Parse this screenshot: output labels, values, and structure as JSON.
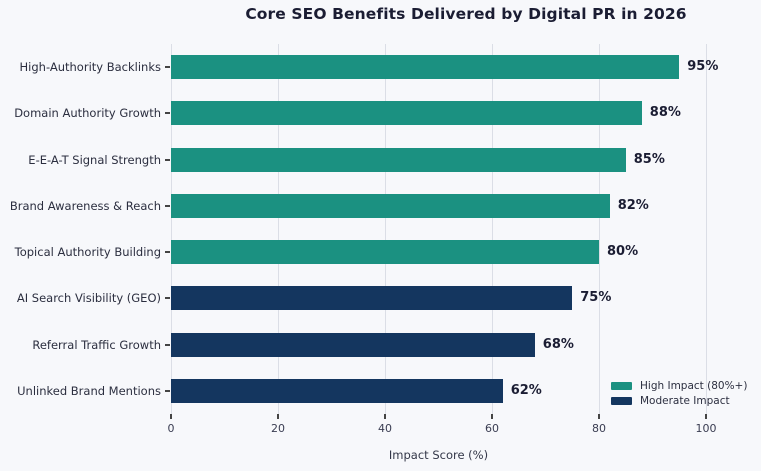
{
  "chart_data": {
    "type": "bar",
    "orientation": "horizontal",
    "title": "Core SEO Benefits Delivered by Digital PR in 2026",
    "xlabel": "Impact Score (%)",
    "categories": [
      "High-Authority Backlinks",
      "Domain Authority Growth",
      "E-E-A-T Signal Strength",
      "Brand Awareness & Reach",
      "Topical Authority Building",
      "AI Search Visibility (GEO)",
      "Referral Traffic Growth",
      "Unlinked Brand Mentions"
    ],
    "values": [
      95,
      88,
      85,
      82,
      80,
      75,
      68,
      62
    ],
    "value_labels": [
      "95%",
      "88%",
      "85%",
      "82%",
      "80%",
      "75%",
      "68%",
      "62%"
    ],
    "series_index": [
      0,
      0,
      0,
      0,
      0,
      1,
      1,
      1
    ],
    "xticks": [
      "0",
      "20",
      "40",
      "60",
      "80",
      "100"
    ],
    "xtick_values": [
      0,
      20,
      40,
      60,
      80,
      100
    ],
    "xlim": [
      0,
      109.5
    ],
    "grid": true,
    "legend_position": "lower right",
    "legend": [
      {
        "label": "High Impact (80%+)",
        "color": "#1b9181"
      },
      {
        "label": "Moderate Impact",
        "color": "#14365f"
      }
    ]
  },
  "style": {
    "background": "#f7f8fb",
    "grid_color": "#dbdee6",
    "title_color": "#1b1d33",
    "category_label_color": "#2b2e3f",
    "value_label_color": "#1b1d33",
    "tick_label_color": "#3a3d52",
    "axis_title_color": "#333748",
    "axis_tick_color": "#444444",
    "legend_text_color": "#2c2f40"
  }
}
